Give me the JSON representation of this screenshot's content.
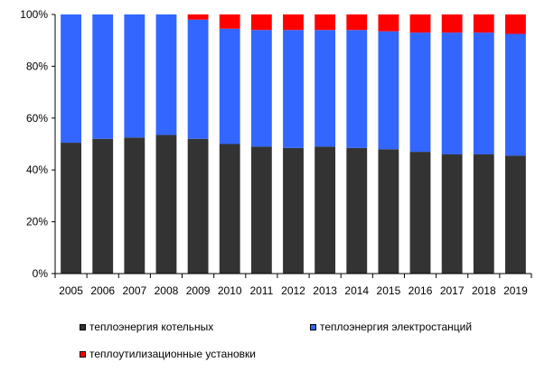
{
  "chart_data": {
    "type": "bar",
    "stacked": true,
    "percent": true,
    "categories": [
      "2005",
      "2006",
      "2007",
      "2008",
      "2009",
      "2010",
      "2011",
      "2012",
      "2013",
      "2014",
      "2015",
      "2016",
      "2017",
      "2018",
      "2019"
    ],
    "series": [
      {
        "name": "теплоэнергия котельных",
        "color": "#333333",
        "values": [
          50.5,
          52.0,
          52.5,
          53.5,
          52.0,
          50.0,
          49.0,
          48.5,
          49.0,
          48.5,
          48.0,
          47.0,
          46.0,
          46.0,
          45.5
        ]
      },
      {
        "name": "теплоэнергия электростанций",
        "color": "#3366FF",
        "values": [
          49.5,
          48.0,
          47.5,
          46.5,
          46.0,
          44.5,
          45.0,
          45.5,
          45.0,
          45.5,
          45.5,
          46.0,
          47.0,
          47.0,
          47.0
        ]
      },
      {
        "name": "теплоутилизационные установки",
        "color": "#FF0000",
        "values": [
          0,
          0,
          0,
          0,
          2.0,
          5.5,
          6.0,
          6.0,
          6.0,
          6.0,
          6.5,
          7.0,
          7.0,
          7.0,
          7.5
        ]
      }
    ],
    "yticks": [
      "0%",
      "20%",
      "40%",
      "60%",
      "80%",
      "100%"
    ],
    "ylim": [
      0,
      100
    ],
    "legend_position": "bottom"
  }
}
